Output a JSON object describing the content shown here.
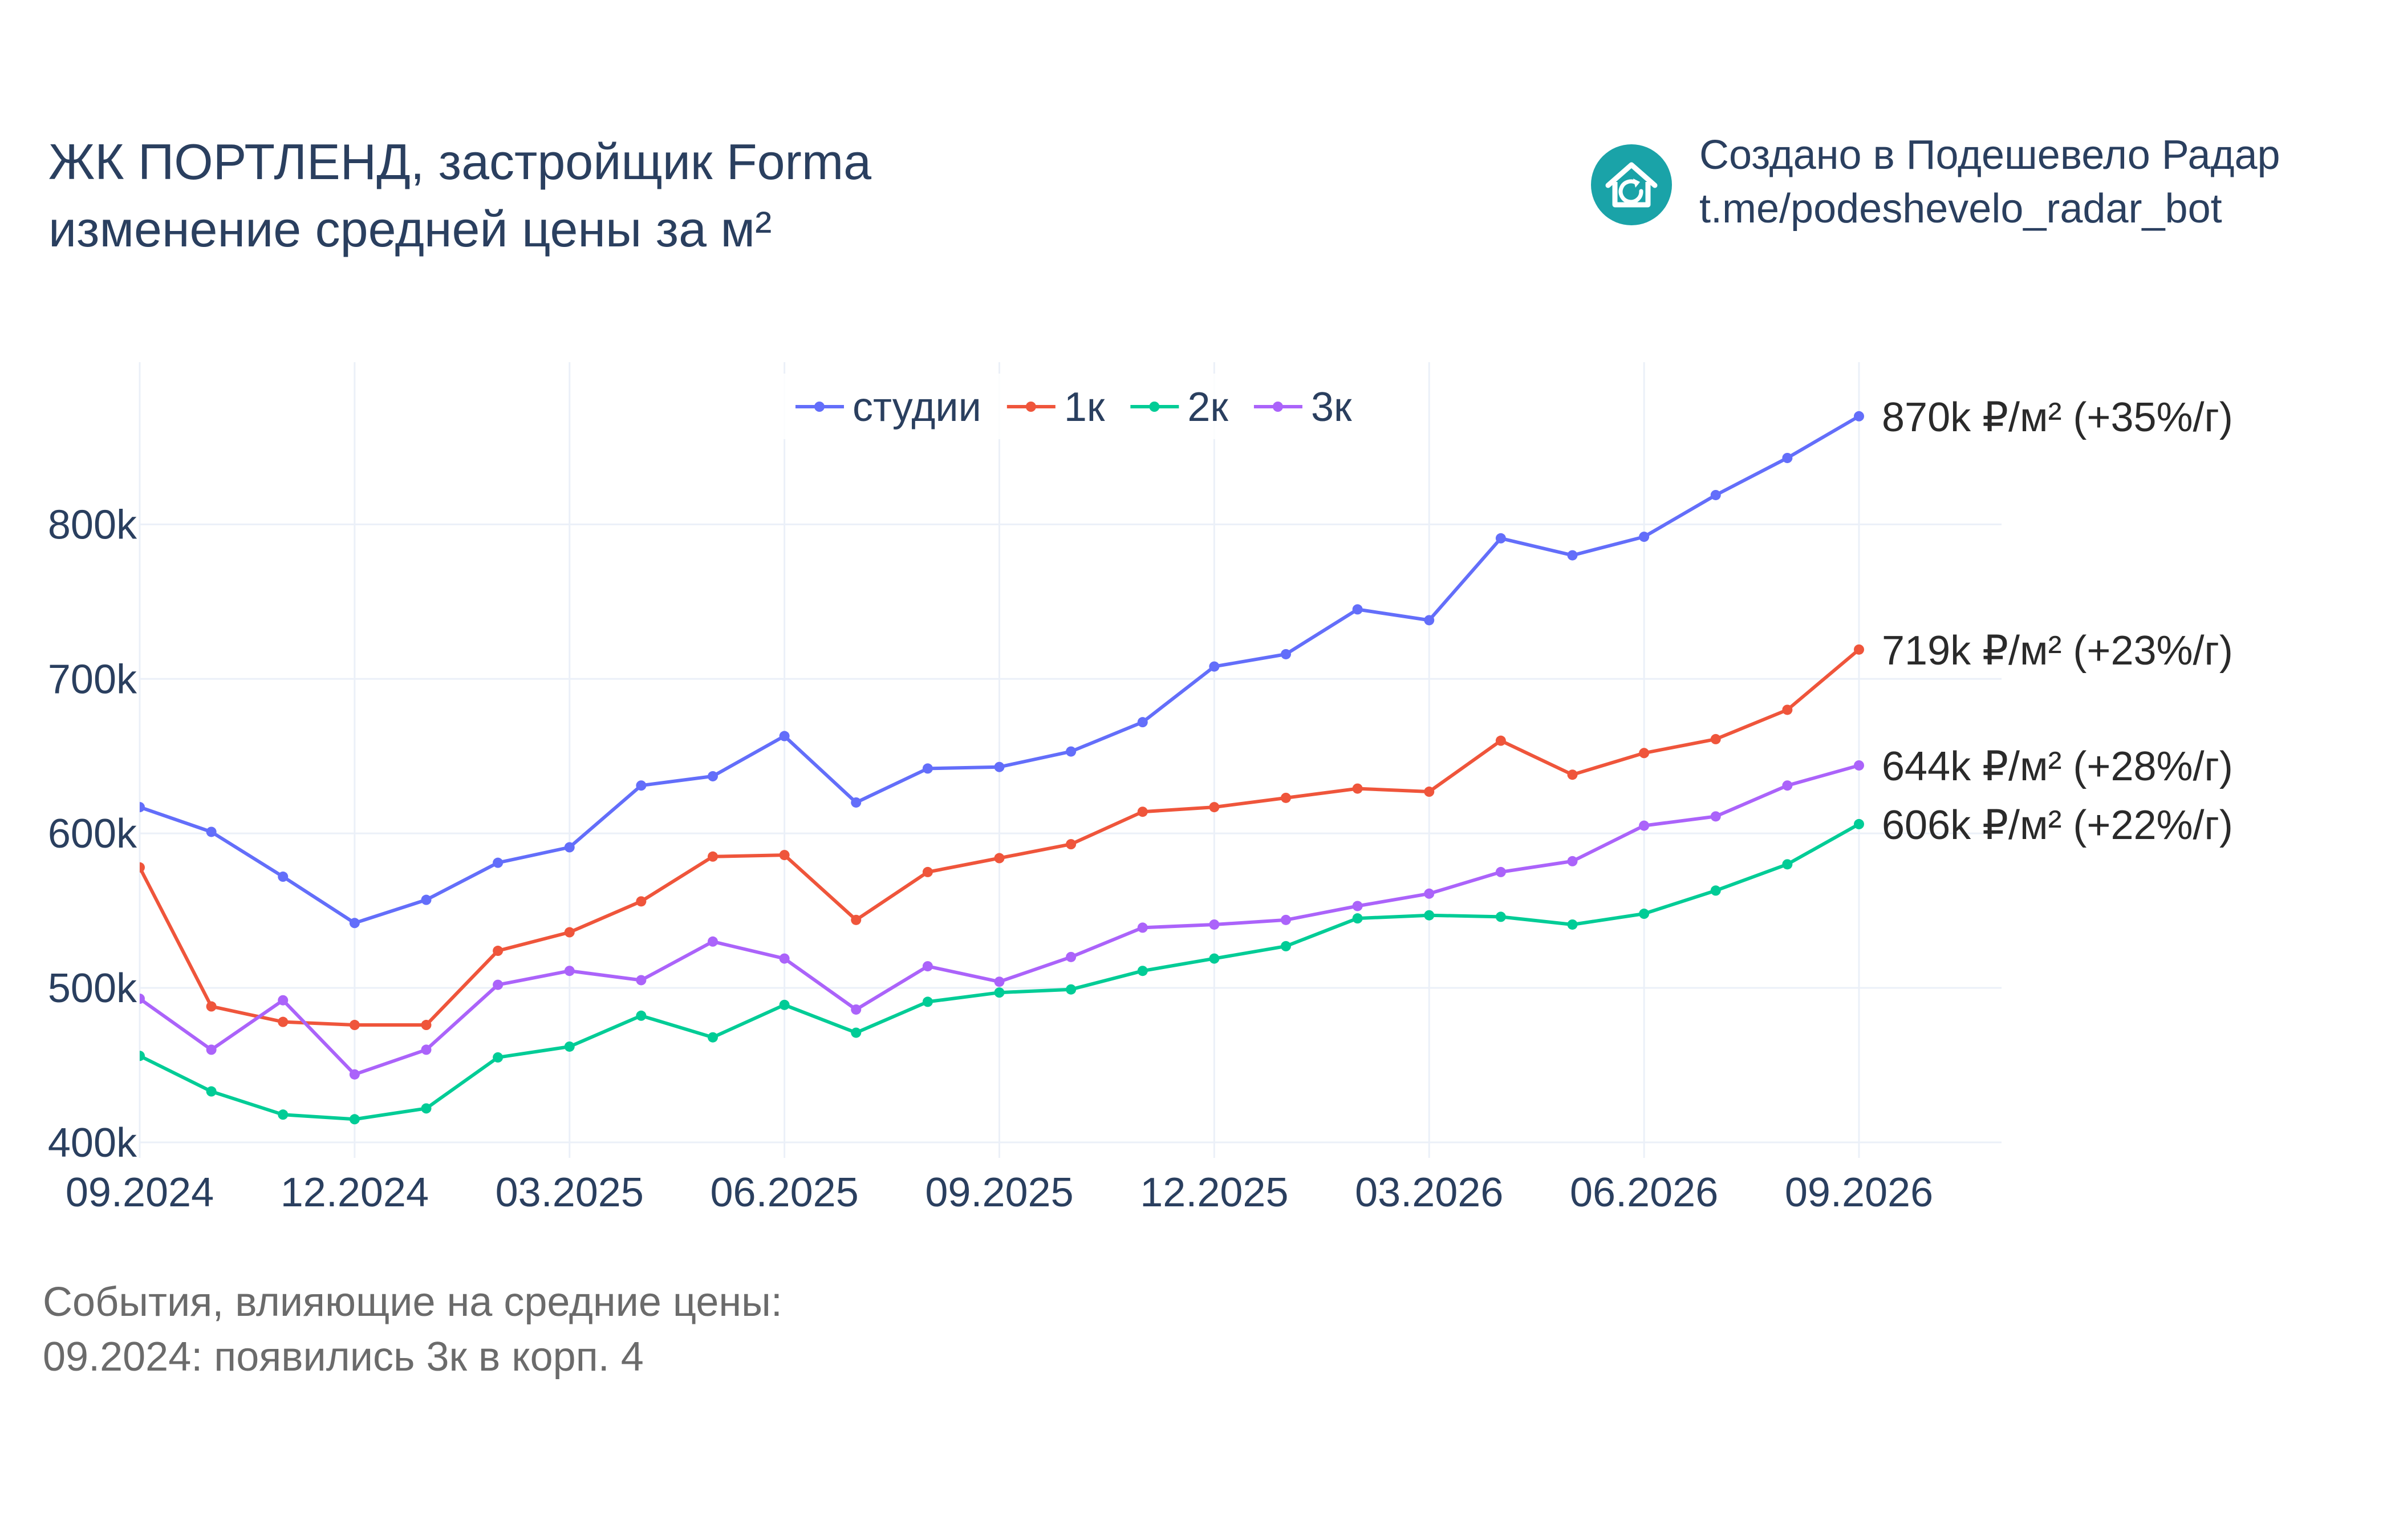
{
  "header": {
    "title_line1": "ЖК ПОРТЛЕНД, застройщик Forma",
    "title_line2": "изменение средней цены за м²"
  },
  "branding": {
    "line1": "Создано в Подешевело Радар",
    "line2": "t.me/podeshevelo_radar_bot",
    "logo_icon": "house-refresh-icon",
    "logo_color": "#1aa3a8"
  },
  "events": {
    "heading": "События, влияющие на средние цены:",
    "items": [
      "09.2024: появились 3к в корп. 4"
    ]
  },
  "chart_data": {
    "type": "line",
    "x": [
      "09.2024",
      "10.2024",
      "11.2024",
      "12.2024",
      "01.2025",
      "02.2025",
      "03.2025",
      "04.2025",
      "05.2025",
      "06.2025",
      "07.2025",
      "08.2025",
      "09.2025",
      "10.2025",
      "11.2025",
      "12.2025",
      "01.2026",
      "02.2026",
      "03.2026",
      "04.2026",
      "05.2026",
      "06.2026",
      "07.2026",
      "08.2026",
      "09.2026"
    ],
    "x_ticks": [
      "09.2024",
      "12.2024",
      "03.2025",
      "06.2025",
      "09.2025",
      "12.2025",
      "03.2026",
      "06.2026",
      "09.2026"
    ],
    "y_ticks": [
      {
        "value": 400000,
        "label": "400k"
      },
      {
        "value": 500000,
        "label": "500k"
      },
      {
        "value": 600000,
        "label": "600k"
      },
      {
        "value": 700000,
        "label": "700k"
      },
      {
        "value": 800000,
        "label": "800k"
      }
    ],
    "ylim": [
      390000,
      905000
    ],
    "grid": true,
    "legend_position": "top-center",
    "series": [
      {
        "name": "студии",
        "color": "#636efa",
        "end_label": "870k ₽/м² (+35%/г)",
        "values": [
          617000,
          601000,
          572000,
          542000,
          557000,
          581000,
          591000,
          631000,
          637000,
          663000,
          620000,
          642000,
          643000,
          653000,
          672000,
          708000,
          716000,
          745000,
          738000,
          791000,
          780000,
          792000,
          819000,
          843000,
          870000
        ]
      },
      {
        "name": "1к",
        "color": "#ef553b",
        "end_label": "719k ₽/м² (+23%/г)",
        "values": [
          578000,
          488000,
          478000,
          476000,
          476000,
          524000,
          536000,
          556000,
          585000,
          586000,
          544000,
          575000,
          584000,
          593000,
          614000,
          617000,
          623000,
          629000,
          627000,
          660000,
          638000,
          652000,
          661000,
          680000,
          719000
        ]
      },
      {
        "name": "2к",
        "color": "#00cc96",
        "end_label": "606k ₽/м² (+22%/г)",
        "values": [
          456000,
          433000,
          418000,
          415000,
          422000,
          455000,
          462000,
          482000,
          468000,
          489000,
          471000,
          491000,
          497000,
          499000,
          511000,
          519000,
          527000,
          545000,
          547000,
          546000,
          541000,
          548000,
          563000,
          580000,
          606000
        ]
      },
      {
        "name": "3к",
        "color": "#ab63fa",
        "end_label": "644k ₽/м² (+28%/г)",
        "values": [
          493000,
          460000,
          492000,
          444000,
          460000,
          502000,
          511000,
          505000,
          530000,
          519000,
          486000,
          514000,
          504000,
          520000,
          539000,
          541000,
          544000,
          553000,
          561000,
          575000,
          582000,
          605000,
          611000,
          631000,
          644000
        ]
      }
    ]
  }
}
